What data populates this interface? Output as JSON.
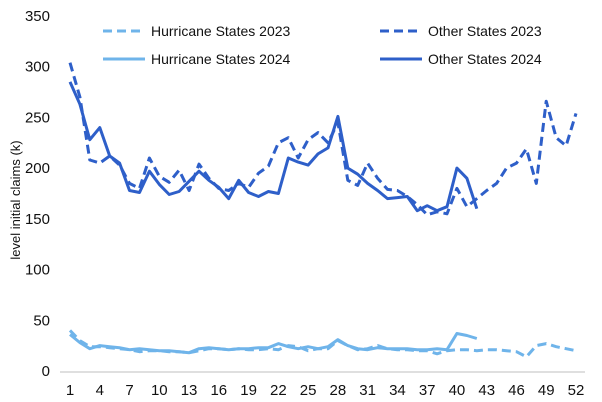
{
  "chart_data": {
    "type": "line",
    "title": "",
    "xlabel": "",
    "ylabel": "level initial claims (k)",
    "ylim": [
      0,
      350
    ],
    "y_ticks": [
      "0",
      "50",
      "100",
      "150",
      "200",
      "250",
      "300",
      "350"
    ],
    "x_ticks": [
      "1",
      "4",
      "7",
      "10",
      "13",
      "16",
      "19",
      "22",
      "25",
      "28",
      "31",
      "34",
      "37",
      "40",
      "43",
      "46",
      "49",
      "52"
    ],
    "colors": {
      "hurricane": "#6fb4ea",
      "other": "#2e5fc9"
    },
    "legend": [
      {
        "name": "Hurricane States 2023",
        "series": 0
      },
      {
        "name": "Other States 2023",
        "series": 1
      },
      {
        "name": "Hurricane States 2024",
        "series": 2
      },
      {
        "name": "Other States 2024",
        "series": 3
      }
    ],
    "series": [
      {
        "name": "Hurricane States 2023",
        "style": "dashed",
        "color_key": "hurricane",
        "x": [
          1,
          2,
          3,
          4,
          5,
          6,
          7,
          8,
          9,
          10,
          11,
          12,
          13,
          14,
          15,
          16,
          17,
          18,
          19,
          20,
          21,
          22,
          23,
          24,
          25,
          26,
          27,
          28,
          29,
          30,
          31,
          32,
          33,
          34,
          35,
          36,
          37,
          38,
          39,
          40,
          41,
          42,
          43,
          44,
          45,
          46,
          47,
          48,
          49,
          50,
          51,
          52
        ],
        "y": [
          40,
          30,
          24,
          24,
          23,
          22,
          21,
          19,
          20,
          20,
          19,
          19,
          18,
          20,
          22,
          22,
          21,
          22,
          21,
          21,
          22,
          21,
          25,
          24,
          20,
          22,
          22,
          30,
          25,
          21,
          22,
          25,
          22,
          21,
          21,
          20,
          20,
          17,
          20,
          21,
          21,
          20,
          21,
          21,
          20,
          19,
          14,
          25,
          27,
          24,
          22,
          20
        ]
      },
      {
        "name": "Other States 2023",
        "style": "dashed",
        "color_key": "other",
        "x": [
          1,
          2,
          3,
          4,
          5,
          6,
          7,
          8,
          9,
          10,
          11,
          12,
          13,
          14,
          15,
          16,
          17,
          18,
          19,
          20,
          21,
          22,
          23,
          24,
          25,
          26,
          27,
          28,
          29,
          30,
          31,
          32,
          33,
          34,
          35,
          36,
          37,
          38,
          39,
          40,
          41,
          42,
          43,
          44,
          45,
          46,
          47,
          48,
          49,
          50,
          51,
          52
        ],
        "y": [
          304,
          270,
          208,
          205,
          212,
          203,
          185,
          180,
          210,
          192,
          186,
          198,
          178,
          204,
          190,
          180,
          178,
          185,
          181,
          195,
          202,
          225,
          230,
          210,
          228,
          235,
          225,
          245,
          188,
          183,
          205,
          190,
          179,
          178,
          172,
          164,
          154,
          157,
          155,
          180,
          162,
          170,
          178,
          185,
          200,
          205,
          219,
          185,
          266,
          230,
          222,
          254
        ]
      },
      {
        "name": "Hurricane States 2024",
        "style": "solid",
        "color_key": "hurricane",
        "x": [
          1,
          2,
          3,
          4,
          5,
          6,
          7,
          8,
          9,
          10,
          11,
          12,
          13,
          14,
          15,
          16,
          17,
          18,
          19,
          20,
          21,
          22,
          23,
          24,
          25,
          26,
          27,
          28,
          29,
          30,
          31,
          32,
          33,
          34,
          35,
          36,
          37,
          38,
          39,
          40,
          41,
          42
        ],
        "y": [
          36,
          28,
          22,
          25,
          24,
          23,
          21,
          22,
          21,
          20,
          20,
          19,
          18,
          22,
          23,
          22,
          21,
          22,
          22,
          23,
          23,
          27,
          24,
          22,
          24,
          22,
          24,
          31,
          25,
          22,
          21,
          23,
          22,
          22,
          22,
          21,
          21,
          22,
          21,
          37,
          35,
          32
        ]
      },
      {
        "name": "Other States 2024",
        "style": "solid",
        "color_key": "other",
        "x": [
          1,
          2,
          3,
          4,
          5,
          6,
          7,
          8,
          9,
          10,
          11,
          12,
          13,
          14,
          15,
          16,
          17,
          18,
          19,
          20,
          21,
          22,
          23,
          24,
          25,
          26,
          27,
          28,
          29,
          30,
          31,
          32,
          33,
          34,
          35,
          36,
          37,
          38,
          39,
          40,
          41,
          42
        ],
        "y": [
          285,
          263,
          228,
          240,
          212,
          205,
          178,
          176,
          197,
          184,
          174,
          177,
          187,
          197,
          188,
          181,
          170,
          188,
          176,
          172,
          177,
          175,
          210,
          206,
          203,
          214,
          220,
          251,
          200,
          194,
          185,
          178,
          170,
          171,
          172,
          158,
          163,
          158,
          162,
          200,
          190,
          160
        ]
      }
    ]
  }
}
